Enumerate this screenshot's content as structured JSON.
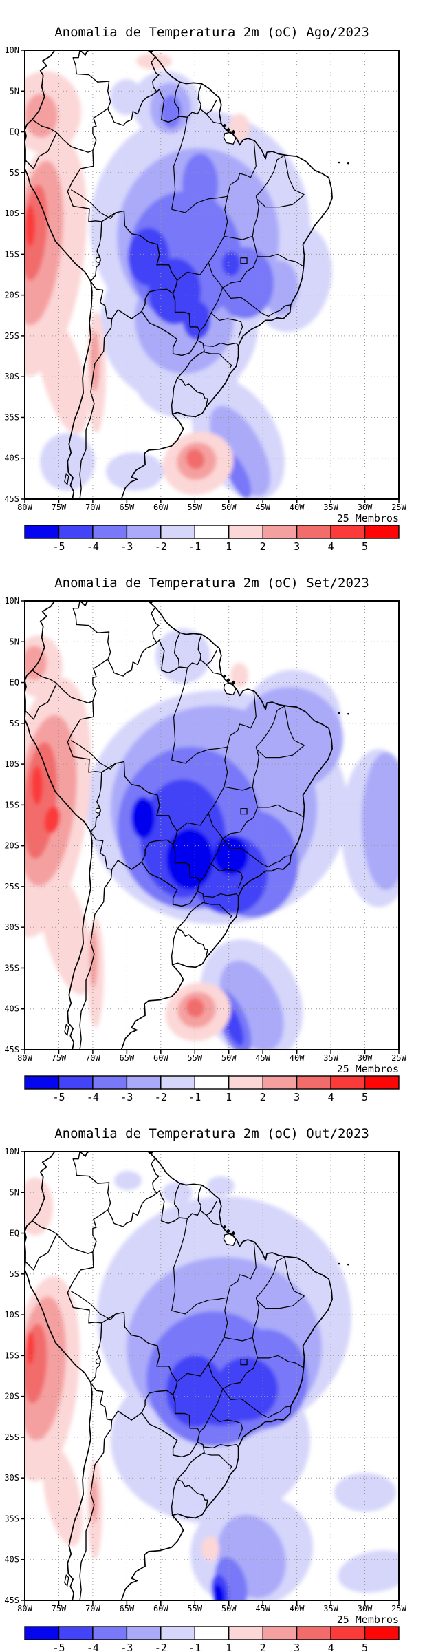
{
  "panels": [
    {
      "title": "Anomalia de Temperatura 2m (oC) Ago/2023",
      "month_label": "Ago/2023"
    },
    {
      "title": "Anomalia de Temperatura 2m (oC) Set/2023",
      "month_label": "Set/2023"
    },
    {
      "title": "Anomalia de Temperatura 2m (oC) Out/2023",
      "month_label": "Out/2023"
    }
  ],
  "axes": {
    "lat_labels": [
      "10N",
      "5N",
      "EQ",
      "5S",
      "10S",
      "15S",
      "20S",
      "25S",
      "30S",
      "35S",
      "40S",
      "45S"
    ],
    "lon_labels": [
      "80W",
      "75W",
      "70W",
      "65W",
      "60W",
      "55W",
      "50W",
      "45W",
      "40W",
      "35W",
      "30W",
      "25W"
    ]
  },
  "colorbar": {
    "tick_labels": [
      "-5",
      "-4",
      "-3",
      "-2",
      "-1",
      "1",
      "2",
      "3",
      "4",
      "5"
    ],
    "segment_colors": [
      "#0505ef",
      "#4343f7",
      "#7878f8",
      "#aaaaf9",
      "#d6d6fb",
      "#ffffff",
      "#fcd7d7",
      "#f5a0a0",
      "#f26c6c",
      "#fb3a3a",
      "#fe0606"
    ],
    "members_label": "25 Membros"
  },
  "chart_data": [
    {
      "type": "heatmap",
      "title": "Anomalia de Temperatura 2m (oC) Ago/2023",
      "variable": "Anomalia de Temperatura 2m",
      "units": "oC",
      "month": "Ago/2023",
      "ensemble_members": 25,
      "lon_range_deg": [
        -80,
        -25
      ],
      "lat_range_deg": [
        -45,
        10
      ],
      "grid_spacing_deg": 5,
      "contour_levels": [
        -5,
        -4,
        -3,
        -2,
        -1,
        1,
        2,
        3,
        4,
        5
      ],
      "palette": [
        "#0505ef",
        "#4343f7",
        "#7878f8",
        "#aaaaf9",
        "#d6d6fb",
        "#ffffff",
        "#fcd7d7",
        "#f5a0a0",
        "#f26c6c",
        "#fb3a3a",
        "#fe0606"
      ],
      "features": [
        {
          "description": "cold anomaly over central and southeastern Brazil",
          "approx_center_lon_lat": [
            -56,
            -16
          ],
          "peak_level": -4
        },
        {
          "description": "cold anomaly over Guyana/Suriname",
          "approx_center_lon_lat": [
            -58,
            3
          ],
          "peak_level": -3
        },
        {
          "description": "warm anomaly along Peru Pacific coast",
          "approx_center_lon_lat": [
            -78,
            -13
          ],
          "peak_level": 4
        },
        {
          "description": "warm spot over NE Argentina / SW Atlantic",
          "approx_center_lon_lat": [
            -54.5,
            -40.5
          ],
          "peak_level": 3
        },
        {
          "description": "cold band over SW Atlantic",
          "approx_center_lon_lat": [
            -49,
            -40
          ],
          "peak_level": -2
        }
      ]
    },
    {
      "type": "heatmap",
      "title": "Anomalia de Temperatura 2m (oC) Set/2023",
      "variable": "Anomalia de Temperatura 2m",
      "units": "oC",
      "month": "Set/2023",
      "ensemble_members": 25,
      "lon_range_deg": [
        -80,
        -25
      ],
      "lat_range_deg": [
        -45,
        10
      ],
      "grid_spacing_deg": 5,
      "contour_levels": [
        -5,
        -4,
        -3,
        -2,
        -1,
        1,
        2,
        3,
        4,
        5
      ],
      "palette": [
        "#0505ef",
        "#4343f7",
        "#7878f8",
        "#aaaaf9",
        "#d6d6fb",
        "#ffffff",
        "#fcd7d7",
        "#f5a0a0",
        "#f26c6c",
        "#fb3a3a",
        "#fe0606"
      ],
      "features": [
        {
          "description": "strong cold anomaly over Bolivia / Mato Grosso / Mato Grosso do Sul / Sao Paulo",
          "approx_center_lon_lat": [
            -57,
            -19
          ],
          "peak_level": -5
        },
        {
          "description": "light cold anomaly over NE Brazil and adjacent Atlantic",
          "approx_center_lon_lat": [
            -40,
            -8
          ],
          "peak_level": -2
        },
        {
          "description": "strong warm anomaly along Peru Pacific coast",
          "approx_center_lon_lat": [
            -78,
            -14
          ],
          "peak_level": 5
        },
        {
          "description": "warm spot over NE Argentina / SW Atlantic",
          "approx_center_lon_lat": [
            -54.5,
            -40
          ],
          "peak_level": 3
        },
        {
          "description": "cold band over SW Atlantic",
          "approx_center_lon_lat": [
            -50,
            -42
          ],
          "peak_level": -4
        }
      ]
    },
    {
      "type": "heatmap",
      "title": "Anomalia de Temperatura 2m (oC) Out/2023",
      "variable": "Anomalia de Temperatura 2m",
      "units": "oC",
      "month": "Out/2023",
      "ensemble_members": 25,
      "lon_range_deg": [
        -80,
        -25
      ],
      "lat_range_deg": [
        -45,
        10
      ],
      "grid_spacing_deg": 5,
      "contour_levels": [
        -5,
        -4,
        -3,
        -2,
        -1,
        1,
        2,
        3,
        4,
        5
      ],
      "palette": [
        "#0505ef",
        "#4343f7",
        "#7878f8",
        "#aaaaf9",
        "#d6d6fb",
        "#ffffff",
        "#fcd7d7",
        "#f5a0a0",
        "#f26c6c",
        "#fb3a3a",
        "#fe0606"
      ],
      "features": [
        {
          "description": "broad cold anomaly over central Brazil (Goias / Minas Gerais / Mato Grosso do Sul)",
          "approx_center_lon_lat": [
            -53,
            -19
          ],
          "peak_level": -4
        },
        {
          "description": "warm anomaly along Peru/Chile Pacific coast",
          "approx_center_lon_lat": [
            -78,
            -16
          ],
          "peak_level": 4
        },
        {
          "description": "cold band over SW Atlantic with small intense core",
          "approx_center_lon_lat": [
            -52,
            -43
          ],
          "peak_level": -5
        },
        {
          "description": "light cold patches over open Atlantic near 30W",
          "approx_center_lon_lat": [
            -30,
            -32
          ],
          "peak_level": -1
        }
      ]
    }
  ]
}
